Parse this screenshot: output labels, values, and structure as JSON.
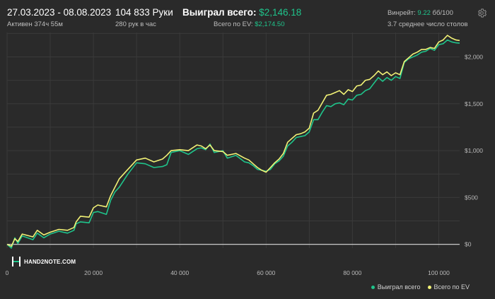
{
  "header": {
    "date_range": "27.03.2023 - 08.08.2023",
    "active_time": "Активен 374ч 55м",
    "hands_count": "104 833 Руки",
    "hands_per_hour": "280 рук в час",
    "won_label": "Выиграл всего:",
    "won_value": "$2,146.18",
    "ev_label": "Всего по EV:",
    "ev_value": "$2,174.50",
    "winrate_label": "Винрейт:",
    "winrate_value": "9.22",
    "winrate_unit": "бб/100",
    "avg_tables": "3.7 среднее число столов"
  },
  "logo": {
    "text": "HAND2NOTE.COM"
  },
  "colors": {
    "background": "#2a2a2a",
    "grid": "#3a3a3a",
    "won_line": "#1fc48b",
    "ev_line": "#f2f276",
    "axis_text": "#b9b9b9",
    "zero_line": "#dcdcdc"
  },
  "icons": {
    "settings": "gear-icon",
    "logo": "hand2note-logo-icon"
  },
  "chart_data": {
    "type": "line",
    "x_ticks": [
      0,
      20000,
      40000,
      60000,
      80000,
      100000
    ],
    "x_tick_labels": [
      "0",
      "20 000",
      "40 000",
      "60 000",
      "80 000",
      "100 000"
    ],
    "y_ticks": [
      0,
      500,
      1000,
      1500,
      2000
    ],
    "y_tick_labels": [
      "$0",
      "$500",
      "$1,000",
      "$1,500",
      "$2,000"
    ],
    "xlim": [
      0,
      104833
    ],
    "ylim": [
      -40,
      2260
    ],
    "grid": true,
    "legend_position": "bottom-right",
    "series": [
      {
        "name": "Выиграл всего",
        "color": "#1fc48b",
        "points": [
          [
            0,
            0
          ],
          [
            1000,
            -40
          ],
          [
            1800,
            70
          ],
          [
            2500,
            10
          ],
          [
            3500,
            90
          ],
          [
            6000,
            50
          ],
          [
            7000,
            120
          ],
          [
            8500,
            70
          ],
          [
            10000,
            110
          ],
          [
            12000,
            140
          ],
          [
            14000,
            120
          ],
          [
            15500,
            150
          ],
          [
            16000,
            220
          ],
          [
            17000,
            240
          ],
          [
            19000,
            230
          ],
          [
            20000,
            340
          ],
          [
            21000,
            350
          ],
          [
            23000,
            320
          ],
          [
            24000,
            470
          ],
          [
            25000,
            560
          ],
          [
            26000,
            610
          ],
          [
            28000,
            750
          ],
          [
            30000,
            870
          ],
          [
            32000,
            860
          ],
          [
            34000,
            820
          ],
          [
            36000,
            830
          ],
          [
            37000,
            850
          ],
          [
            38000,
            980
          ],
          [
            40000,
            1000
          ],
          [
            42000,
            960
          ],
          [
            44000,
            1020
          ],
          [
            45000,
            1030
          ],
          [
            46000,
            1010
          ],
          [
            47000,
            1070
          ],
          [
            48000,
            980
          ],
          [
            50000,
            1000
          ],
          [
            51000,
            920
          ],
          [
            53000,
            950
          ],
          [
            55000,
            880
          ],
          [
            56000,
            870
          ],
          [
            57000,
            840
          ],
          [
            58000,
            800
          ],
          [
            59000,
            790
          ],
          [
            60000,
            780
          ],
          [
            61000,
            800
          ],
          [
            62000,
            860
          ],
          [
            63000,
            890
          ],
          [
            64000,
            940
          ],
          [
            65000,
            1050
          ],
          [
            66000,
            1090
          ],
          [
            67000,
            1140
          ],
          [
            68000,
            1150
          ],
          [
            69000,
            1160
          ],
          [
            70000,
            1200
          ],
          [
            71000,
            1330
          ],
          [
            72000,
            1330
          ],
          [
            73000,
            1410
          ],
          [
            74000,
            1480
          ],
          [
            75000,
            1470
          ],
          [
            76000,
            1500
          ],
          [
            77000,
            1510
          ],
          [
            78000,
            1490
          ],
          [
            79000,
            1550
          ],
          [
            80000,
            1540
          ],
          [
            81000,
            1590
          ],
          [
            82000,
            1600
          ],
          [
            83000,
            1640
          ],
          [
            84000,
            1660
          ],
          [
            85000,
            1720
          ],
          [
            86000,
            1780
          ],
          [
            87000,
            1740
          ],
          [
            88000,
            1780
          ],
          [
            89000,
            1750
          ],
          [
            90000,
            1790
          ],
          [
            91000,
            1770
          ],
          [
            92000,
            1940
          ],
          [
            93000,
            1980
          ],
          [
            94000,
            2000
          ],
          [
            95000,
            2020
          ],
          [
            96000,
            2050
          ],
          [
            97000,
            2060
          ],
          [
            98000,
            2090
          ],
          [
            99000,
            2070
          ],
          [
            100000,
            2130
          ],
          [
            101000,
            2140
          ],
          [
            102000,
            2180
          ],
          [
            103000,
            2160
          ],
          [
            104000,
            2150
          ],
          [
            104833,
            2146
          ]
        ]
      },
      {
        "name": "Всего по EV",
        "color": "#f2f276",
        "points": [
          [
            0,
            0
          ],
          [
            1000,
            -20
          ],
          [
            1800,
            60
          ],
          [
            2500,
            30
          ],
          [
            3500,
            110
          ],
          [
            6000,
            80
          ],
          [
            7000,
            150
          ],
          [
            8500,
            100
          ],
          [
            10000,
            130
          ],
          [
            12000,
            160
          ],
          [
            14000,
            150
          ],
          [
            15500,
            180
          ],
          [
            16000,
            240
          ],
          [
            17000,
            300
          ],
          [
            19000,
            290
          ],
          [
            20000,
            390
          ],
          [
            21000,
            420
          ],
          [
            23000,
            400
          ],
          [
            24000,
            520
          ],
          [
            25000,
            610
          ],
          [
            26000,
            700
          ],
          [
            28000,
            800
          ],
          [
            30000,
            900
          ],
          [
            32000,
            920
          ],
          [
            34000,
            880
          ],
          [
            36000,
            910
          ],
          [
            37000,
            950
          ],
          [
            38000,
            1000
          ],
          [
            40000,
            1010
          ],
          [
            42000,
            1000
          ],
          [
            44000,
            1060
          ],
          [
            45000,
            1050
          ],
          [
            46000,
            1020
          ],
          [
            47000,
            1060
          ],
          [
            48000,
            1000
          ],
          [
            50000,
            990
          ],
          [
            51000,
            950
          ],
          [
            53000,
            970
          ],
          [
            55000,
            920
          ],
          [
            56000,
            900
          ],
          [
            57000,
            860
          ],
          [
            58000,
            820
          ],
          [
            59000,
            790
          ],
          [
            60000,
            770
          ],
          [
            61000,
            820
          ],
          [
            62000,
            870
          ],
          [
            63000,
            910
          ],
          [
            64000,
            970
          ],
          [
            65000,
            1090
          ],
          [
            66000,
            1130
          ],
          [
            67000,
            1170
          ],
          [
            68000,
            1180
          ],
          [
            69000,
            1200
          ],
          [
            70000,
            1240
          ],
          [
            71000,
            1400
          ],
          [
            72000,
            1430
          ],
          [
            73000,
            1510
          ],
          [
            74000,
            1590
          ],
          [
            75000,
            1600
          ],
          [
            76000,
            1620
          ],
          [
            77000,
            1640
          ],
          [
            78000,
            1600
          ],
          [
            79000,
            1650
          ],
          [
            80000,
            1630
          ],
          [
            81000,
            1690
          ],
          [
            82000,
            1700
          ],
          [
            83000,
            1750
          ],
          [
            84000,
            1760
          ],
          [
            85000,
            1800
          ],
          [
            86000,
            1850
          ],
          [
            87000,
            1810
          ],
          [
            88000,
            1840
          ],
          [
            89000,
            1800
          ],
          [
            90000,
            1830
          ],
          [
            91000,
            1810
          ],
          [
            92000,
            1950
          ],
          [
            93000,
            1990
          ],
          [
            94000,
            2030
          ],
          [
            95000,
            2050
          ],
          [
            96000,
            2080
          ],
          [
            97000,
            2080
          ],
          [
            98000,
            2100
          ],
          [
            99000,
            2090
          ],
          [
            100000,
            2160
          ],
          [
            101000,
            2180
          ],
          [
            102000,
            2230
          ],
          [
            103000,
            2200
          ],
          [
            104000,
            2180
          ],
          [
            104833,
            2174.5
          ]
        ]
      }
    ]
  }
}
